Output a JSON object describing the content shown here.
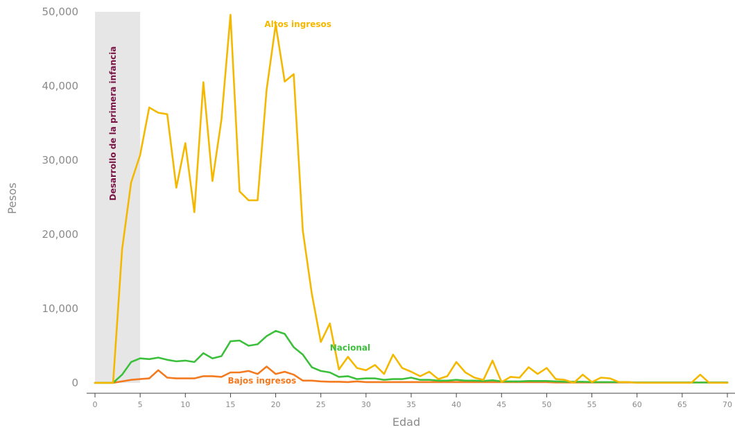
{
  "chart_data": {
    "type": "line",
    "xlabel": "Edad",
    "ylabel": "Pesos",
    "xlim": [
      0,
      70
    ],
    "ylim": [
      0,
      50000
    ],
    "x_ticks": [
      0,
      5,
      10,
      15,
      20,
      25,
      30,
      35,
      40,
      45,
      50,
      55,
      60,
      65,
      70
    ],
    "y_ticks": [
      0,
      10000,
      20000,
      30000,
      40000,
      50000
    ],
    "y_tick_labels": [
      "0",
      "10,000",
      "20,000",
      "30,000",
      "40,000",
      "50,000"
    ],
    "grid": false,
    "band": {
      "x_start": 0,
      "x_end": 5,
      "label": "Desarrollo de la primera infancia",
      "color": "#e6e6e6",
      "label_color": "#7a1446"
    },
    "series": [
      {
        "name": "Altos ingresos",
        "color": "#f5b800",
        "label_x": 13,
        "label_y": 48300,
        "values": [
          0,
          0,
          0,
          18000,
          27000,
          30700,
          37100,
          36400,
          36200,
          26300,
          32300,
          23000,
          40500,
          27200,
          35500,
          49600,
          25800,
          24600,
          24600,
          39500,
          48300,
          40600,
          41600,
          20500,
          12000,
          5500,
          8000,
          1800,
          3500,
          2000,
          1700,
          2400,
          1200,
          3800,
          2000,
          1500,
          900,
          1500,
          500,
          900,
          2800,
          1400,
          700,
          400,
          3000,
          100,
          800,
          700,
          2100,
          1200,
          2000,
          500,
          400,
          0,
          1100,
          100,
          700,
          600,
          100,
          100,
          0,
          0,
          0,
          0,
          0,
          0,
          0,
          1100,
          0,
          0,
          0
        ]
      },
      {
        "name": "Nacional",
        "color": "#3cc03c",
        "label_x": 26,
        "label_y": 4700,
        "values": [
          0,
          0,
          0,
          1100,
          2800,
          3300,
          3200,
          3400,
          3100,
          2900,
          3000,
          2800,
          4000,
          3300,
          3600,
          5600,
          5700,
          5000,
          5200,
          6300,
          7000,
          6600,
          4800,
          3800,
          2100,
          1600,
          1400,
          800,
          900,
          500,
          600,
          600,
          400,
          500,
          500,
          700,
          400,
          400,
          300,
          300,
          400,
          300,
          300,
          250,
          350,
          200,
          200,
          200,
          250,
          250,
          250,
          200,
          150,
          150,
          150,
          100,
          100,
          100,
          100,
          100,
          50,
          50,
          50,
          50,
          50,
          50,
          50,
          50,
          50,
          50,
          50
        ]
      },
      {
        "name": "Bajos ingresos",
        "color": "#f37a1f",
        "label_x": 14.7,
        "label_y": 300,
        "values": [
          0,
          0,
          0,
          200,
          400,
          500,
          600,
          1700,
          700,
          600,
          600,
          600,
          900,
          900,
          800,
          1400,
          1400,
          1600,
          1200,
          2200,
          1200,
          1500,
          1100,
          300,
          300,
          200,
          150,
          150,
          100,
          200,
          100,
          100,
          100,
          100,
          100,
          100,
          100,
          100,
          100,
          100,
          100,
          100,
          100,
          100,
          100,
          100,
          100,
          100,
          100,
          100,
          100,
          50,
          50,
          50,
          50,
          50,
          50,
          50,
          50,
          50,
          50,
          50,
          50,
          50,
          50,
          50,
          50,
          50,
          50,
          50,
          50
        ]
      }
    ]
  }
}
